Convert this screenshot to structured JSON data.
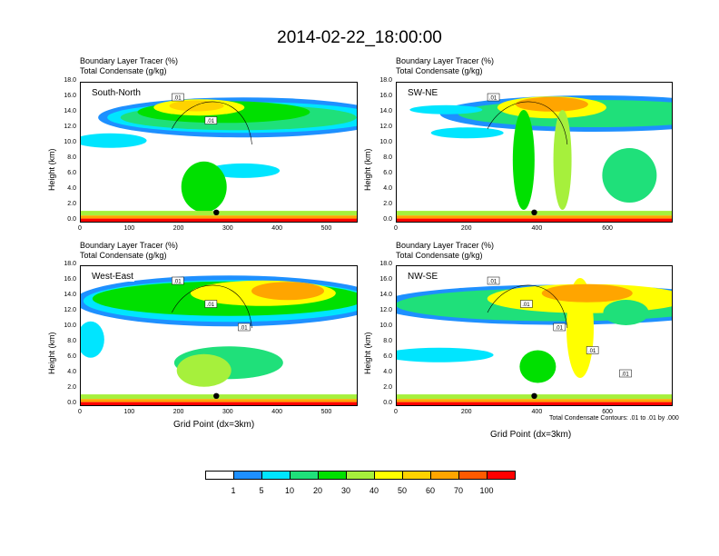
{
  "title": "2014-02-22_18:00:00",
  "panel_header": {
    "line1": "Boundary Layer Tracer    (%)",
    "line2": "Total Condensate    (g/kg)"
  },
  "ylabel": "Height (km)",
  "xlabel": "Grid Point (dx=3km)",
  "contour_note": "Total Condensate Contours: .01 to .01 by .000",
  "colorbar": {
    "colors": [
      "#ffffff",
      "#1e90ff",
      "#00e5ff",
      "#1fe07a",
      "#00e000",
      "#a6f03c",
      "#ffff00",
      "#ffd200",
      "#ffa500",
      "#ff5a00",
      "#ff0000"
    ],
    "labels": [
      "1",
      "5",
      "10",
      "20",
      "30",
      "40",
      "50",
      "60",
      "70",
      "100"
    ]
  },
  "chart_data": [
    {
      "type": "heatmap",
      "name": "South-North",
      "xlabel": "",
      "ylabel": "Height (km)",
      "xlim": [
        0,
        560
      ],
      "ylim": [
        0,
        18
      ],
      "x_ticks": [
        "0",
        "100",
        "200",
        "300",
        "400",
        "500"
      ],
      "y_ticks": [
        "0.0",
        "2.0",
        "4.0",
        "6.0",
        "8.0",
        "10.0",
        "12.0",
        "14.0",
        "16.0",
        "18.0"
      ],
      "contour_labels": [
        ".01",
        ".01"
      ],
      "marker_x": 275
    },
    {
      "type": "heatmap",
      "name": "SW-NE",
      "xlabel": "",
      "ylabel": "Height (km)",
      "xlim": [
        0,
        780
      ],
      "ylim": [
        0,
        18
      ],
      "x_ticks": [
        "0",
        "200",
        "400",
        "600"
      ],
      "y_ticks": [
        "0.0",
        "2.0",
        "4.0",
        "6.0",
        "8.0",
        "10.0",
        "12.0",
        "14.0",
        "16.0",
        "18.0"
      ],
      "contour_labels": [
        ".01"
      ],
      "marker_x": 390
    },
    {
      "type": "heatmap",
      "name": "West-East",
      "xlabel": "Grid Point (dx=3km)",
      "ylabel": "Height (km)",
      "xlim": [
        0,
        560
      ],
      "ylim": [
        0,
        18
      ],
      "x_ticks": [
        "0",
        "100",
        "200",
        "300",
        "400",
        "500"
      ],
      "y_ticks": [
        "0.0",
        "2.0",
        "4.0",
        "6.0",
        "8.0",
        "10.0",
        "12.0",
        "14.0",
        "16.0",
        "18.0"
      ],
      "contour_labels": [
        ".01",
        ".01",
        ".01"
      ],
      "marker_x": 275
    },
    {
      "type": "heatmap",
      "name": "NW-SE",
      "xlabel": "Grid Point (dx=3km)",
      "ylabel": "Height (km)",
      "xlim": [
        0,
        780
      ],
      "ylim": [
        0,
        18
      ],
      "x_ticks": [
        "0",
        "200",
        "400",
        "600"
      ],
      "y_ticks": [
        "0.0",
        "2.0",
        "4.0",
        "6.0",
        "8.0",
        "10.0",
        "12.0",
        "14.0",
        "16.0",
        "18.0"
      ],
      "contour_labels": [
        ".01",
        ".01",
        ".01",
        ".01",
        ".01"
      ],
      "marker_x": 390
    }
  ]
}
